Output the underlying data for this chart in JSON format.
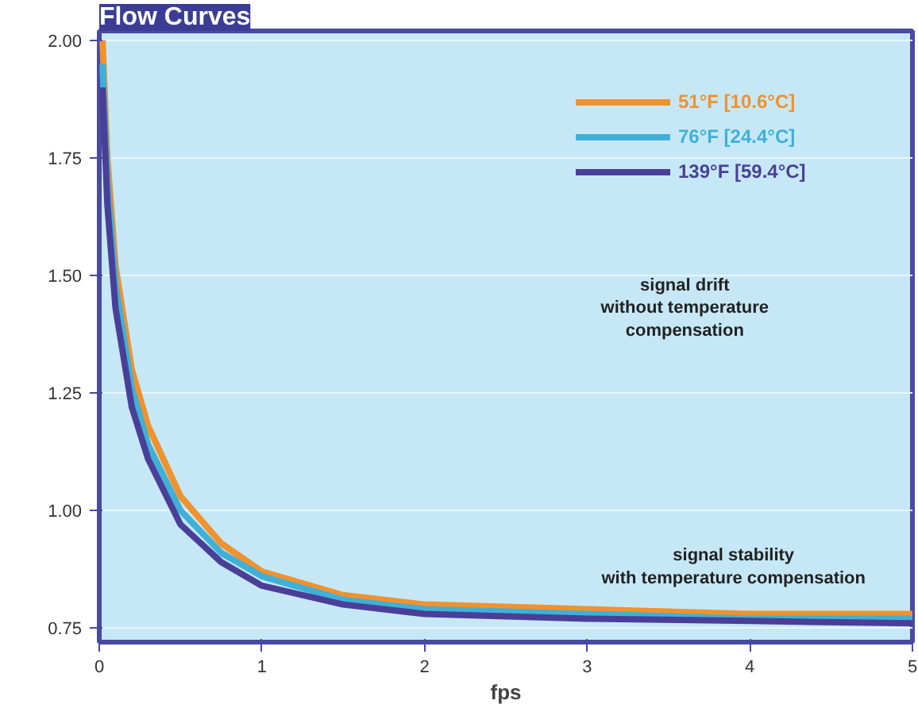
{
  "chart_data": {
    "type": "line",
    "title": "Flow Curves",
    "xlabel": "fps",
    "xlim": [
      0,
      5
    ],
    "xticks": [
      0,
      1,
      2,
      3,
      4,
      5
    ],
    "ylim": [
      0.72,
      2.02
    ],
    "yticks": [
      {
        "value": 2.0,
        "label": "2.00"
      },
      1.75,
      {
        "value": 1.5,
        "label": "1.50"
      },
      1.25,
      {
        "value": 1.0,
        "label": "1.00"
      },
      0.75
    ],
    "grid": "y",
    "legend": "top right",
    "line_style": "solid",
    "marker": "none",
    "x": [
      0.02,
      0.05,
      0.1,
      0.2,
      0.3,
      0.5,
      0.75,
      1.0,
      1.5,
      2.0,
      3.0,
      4.0,
      5.0
    ],
    "series": [
      {
        "name": "51°F [10.6°C]",
        "color": "#f0922e",
        "values": [
          2.0,
          1.75,
          1.52,
          1.3,
          1.18,
          1.03,
          0.93,
          0.87,
          0.82,
          0.8,
          0.79,
          0.78,
          0.78
        ]
      },
      {
        "name": "76°F [24.4°C]",
        "color": "#3fb0d8",
        "values": [
          1.95,
          1.7,
          1.48,
          1.26,
          1.14,
          1.0,
          0.91,
          0.86,
          0.81,
          0.79,
          0.78,
          0.77,
          0.77
        ]
      },
      {
        "name": "139°F [59.4°C]",
        "color": "#4a3f98",
        "values": [
          1.9,
          1.65,
          1.43,
          1.22,
          1.11,
          0.97,
          0.89,
          0.84,
          0.8,
          0.78,
          0.77,
          0.765,
          0.76
        ]
      }
    ],
    "annotations": [
      "signal drift\nwithout temperature\ncompensation",
      "signal stability\nwith temperature compensation"
    ]
  }
}
